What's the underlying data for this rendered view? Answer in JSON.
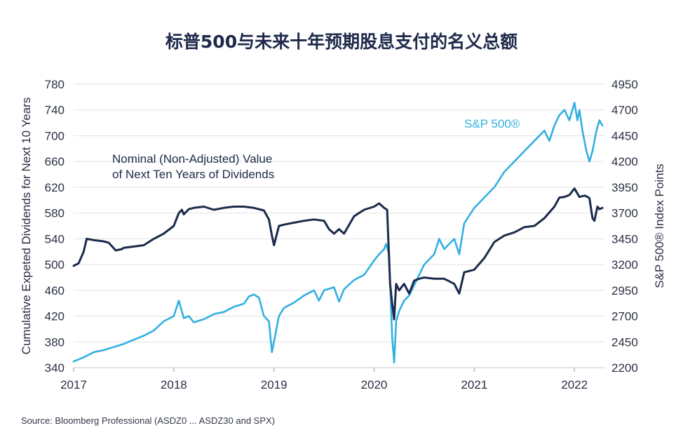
{
  "title": "标普500与未来十年预期股息支付的名义总额",
  "source": "Source:  Bloomberg Professional (ASDZ0 ... ASDZ30 and SPX)",
  "chart_data": {
    "type": "line",
    "ylabel_left": "Cumulative Expeted Dividends for Next 10 Years",
    "ylabel_right": "S&P 500® Index Points",
    "xlim": [
      2017.0,
      2022.3
    ],
    "ylim_left": [
      340,
      780
    ],
    "ylim_right": [
      2200,
      4950
    ],
    "x_ticks": [
      "2017",
      "2018",
      "2019",
      "2020",
      "2021",
      "2022"
    ],
    "y_ticks_left": [
      340,
      380,
      420,
      460,
      500,
      540,
      580,
      620,
      660,
      700,
      740,
      780
    ],
    "y_ticks_right": [
      2200,
      2450,
      2700,
      2950,
      3200,
      3450,
      3700,
      3950,
      4200,
      4450,
      4700,
      4950
    ],
    "grid": true,
    "annotations": {
      "dividends_line1": "Nominal (Non-Adjusted) Value",
      "dividends_line2": "of Next Ten Years of Dividends",
      "sp500": "S&P 500®"
    },
    "series": [
      {
        "name": "Nominal (Non-Adjusted) Value of Next Ten Years of Dividends",
        "axis": "left",
        "color": "#1b2b4b",
        "x": [
          2017.0,
          2017.05,
          2017.1,
          2017.13,
          2017.2,
          2017.3,
          2017.35,
          2017.42,
          2017.48,
          2017.5,
          2017.6,
          2017.7,
          2017.8,
          2017.9,
          2018.0,
          2018.05,
          2018.08,
          2018.1,
          2018.15,
          2018.2,
          2018.3,
          2018.4,
          2018.5,
          2018.6,
          2018.7,
          2018.8,
          2018.9,
          2018.95,
          2018.98,
          2019.0,
          2019.05,
          2019.1,
          2019.2,
          2019.3,
          2019.4,
          2019.5,
          2019.55,
          2019.6,
          2019.65,
          2019.7,
          2019.8,
          2019.9,
          2020.0,
          2020.05,
          2020.1,
          2020.13,
          2020.16,
          2020.18,
          2020.2,
          2020.22,
          2020.25,
          2020.3,
          2020.35,
          2020.4,
          2020.45,
          2020.5,
          2020.6,
          2020.7,
          2020.8,
          2020.85,
          2020.9,
          2021.0,
          2021.1,
          2021.2,
          2021.3,
          2021.4,
          2021.5,
          2021.6,
          2021.7,
          2021.8,
          2021.85,
          2021.9,
          2021.95,
          2022.0,
          2022.05,
          2022.1,
          2022.12,
          2022.15,
          2022.18,
          2022.2,
          2022.23,
          2022.25,
          2022.28
        ],
        "values": [
          498,
          502,
          520,
          540,
          538,
          536,
          534,
          522,
          524,
          526,
          528,
          530,
          540,
          548,
          560,
          580,
          585,
          578,
          586,
          588,
          590,
          585,
          588,
          590,
          590,
          588,
          584,
          570,
          545,
          530,
          560,
          562,
          565,
          568,
          570,
          568,
          555,
          548,
          555,
          548,
          575,
          585,
          590,
          595,
          588,
          585,
          470,
          440,
          415,
          470,
          460,
          470,
          455,
          475,
          478,
          480,
          478,
          478,
          470,
          455,
          488,
          492,
          510,
          535,
          545,
          550,
          558,
          560,
          572,
          590,
          604,
          605,
          608,
          618,
          605,
          607,
          606,
          603,
          572,
          568,
          590,
          586,
          588
        ]
      },
      {
        "name": "S&P 500®",
        "axis": "right",
        "color": "#33b0e0",
        "x": [
          2017.0,
          2017.1,
          2017.2,
          2017.3,
          2017.4,
          2017.5,
          2017.6,
          2017.7,
          2017.8,
          2017.9,
          2018.0,
          2018.05,
          2018.1,
          2018.15,
          2018.2,
          2018.3,
          2018.4,
          2018.5,
          2018.6,
          2018.7,
          2018.75,
          2018.8,
          2018.85,
          2018.9,
          2018.95,
          2018.98,
          2019.05,
          2019.1,
          2019.2,
          2019.3,
          2019.4,
          2019.45,
          2019.5,
          2019.6,
          2019.65,
          2019.7,
          2019.8,
          2019.9,
          2020.0,
          2020.05,
          2020.1,
          2020.12,
          2020.15,
          2020.18,
          2020.2,
          2020.22,
          2020.25,
          2020.3,
          2020.35,
          2020.4,
          2020.5,
          2020.6,
          2020.65,
          2020.7,
          2020.8,
          2020.85,
          2020.9,
          2021.0,
          2021.1,
          2021.2,
          2021.3,
          2021.4,
          2021.5,
          2021.6,
          2021.7,
          2021.75,
          2021.8,
          2021.85,
          2021.9,
          2021.95,
          2022.0,
          2022.03,
          2022.05,
          2022.08,
          2022.1,
          2022.12,
          2022.15,
          2022.18,
          2022.2,
          2022.22,
          2022.25,
          2022.28
        ],
        "values": [
          2260,
          2300,
          2350,
          2370,
          2400,
          2430,
          2470,
          2510,
          2560,
          2650,
          2700,
          2850,
          2680,
          2700,
          2640,
          2670,
          2720,
          2740,
          2790,
          2820,
          2890,
          2910,
          2880,
          2700,
          2650,
          2350,
          2700,
          2780,
          2830,
          2900,
          2950,
          2850,
          2950,
          2980,
          2840,
          2960,
          3050,
          3100,
          3240,
          3300,
          3350,
          3400,
          3300,
          2500,
          2250,
          2650,
          2750,
          2850,
          2900,
          3000,
          3200,
          3300,
          3450,
          3350,
          3450,
          3300,
          3600,
          3750,
          3850,
          3950,
          4100,
          4200,
          4300,
          4400,
          4500,
          4400,
          4550,
          4650,
          4700,
          4600,
          4770,
          4600,
          4700,
          4500,
          4400,
          4300,
          4200,
          4300,
          4400,
          4500,
          4600,
          4550
        ]
      }
    ]
  }
}
